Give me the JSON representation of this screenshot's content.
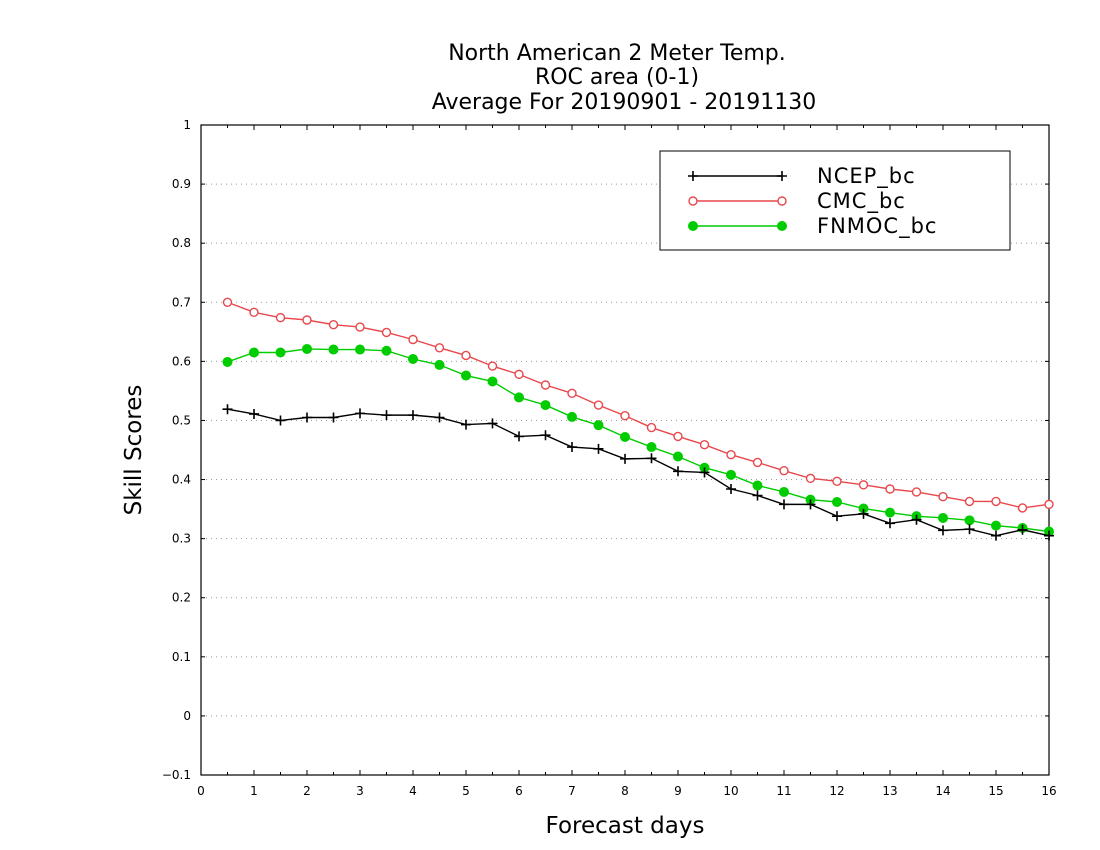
{
  "chart_data": {
    "type": "line",
    "title": [
      "North American 2 Meter Temp.",
      "ROC area (0-1)",
      "Average For 20190901 - 20191130"
    ],
    "xlabel": "Forecast days",
    "ylabel": "Skill Scores",
    "xlim": [
      0,
      16
    ],
    "ylim": [
      -0.1,
      1
    ],
    "x_ticks": [
      "0",
      "1",
      "2",
      "3",
      "4",
      "5",
      "6",
      "7",
      "8",
      "9",
      "10",
      "11",
      "12",
      "13",
      "14",
      "15",
      "16"
    ],
    "y_ticks": [
      "1",
      "0.9",
      "0.8",
      "0.7",
      "0.6",
      "0.5",
      "0.4",
      "0.3",
      "0.2",
      "0.1",
      "0",
      "-0.1"
    ],
    "grid": "horizontal dotted",
    "legend_position": "top-right",
    "x": [
      0.5,
      1,
      1.5,
      2,
      2.5,
      3,
      3.5,
      4,
      4.5,
      5,
      5.5,
      6,
      6.5,
      7,
      7.5,
      8,
      8.5,
      9,
      9.5,
      10,
      10.5,
      11,
      11.5,
      12,
      12.5,
      13,
      13.5,
      14,
      14.5,
      15,
      15.5,
      16
    ],
    "series": [
      {
        "name": "NCEP_bc",
        "color": "#000000",
        "marker": "plus",
        "values": [
          0.519,
          0.511,
          0.5,
          0.505,
          0.505,
          0.512,
          0.509,
          0.509,
          0.505,
          0.493,
          0.495,
          0.473,
          0.475,
          0.455,
          0.452,
          0.435,
          0.436,
          0.414,
          0.412,
          0.384,
          0.373,
          0.358,
          0.358,
          0.338,
          0.342,
          0.326,
          0.332,
          0.314,
          0.316,
          0.305,
          0.315,
          0.305
        ]
      },
      {
        "name": "CMC_bc",
        "color": "#e8474b",
        "marker": "open-circle",
        "values": [
          0.7,
          0.683,
          0.674,
          0.67,
          0.662,
          0.658,
          0.649,
          0.637,
          0.623,
          0.61,
          0.592,
          0.578,
          0.56,
          0.546,
          0.526,
          0.508,
          0.488,
          0.473,
          0.459,
          0.442,
          0.429,
          0.415,
          0.402,
          0.397,
          0.391,
          0.384,
          0.379,
          0.371,
          0.363,
          0.363,
          0.352,
          0.358
        ]
      },
      {
        "name": "FNMOC_bc",
        "color": "#00cc00",
        "marker": "filled-circle",
        "values": [
          0.599,
          0.615,
          0.615,
          0.621,
          0.62,
          0.62,
          0.618,
          0.604,
          0.594,
          0.576,
          0.566,
          0.539,
          0.526,
          0.506,
          0.492,
          0.472,
          0.455,
          0.439,
          0.42,
          0.408,
          0.39,
          0.379,
          0.366,
          0.362,
          0.351,
          0.344,
          0.338,
          0.335,
          0.331,
          0.322,
          0.318,
          0.312
        ]
      }
    ]
  }
}
